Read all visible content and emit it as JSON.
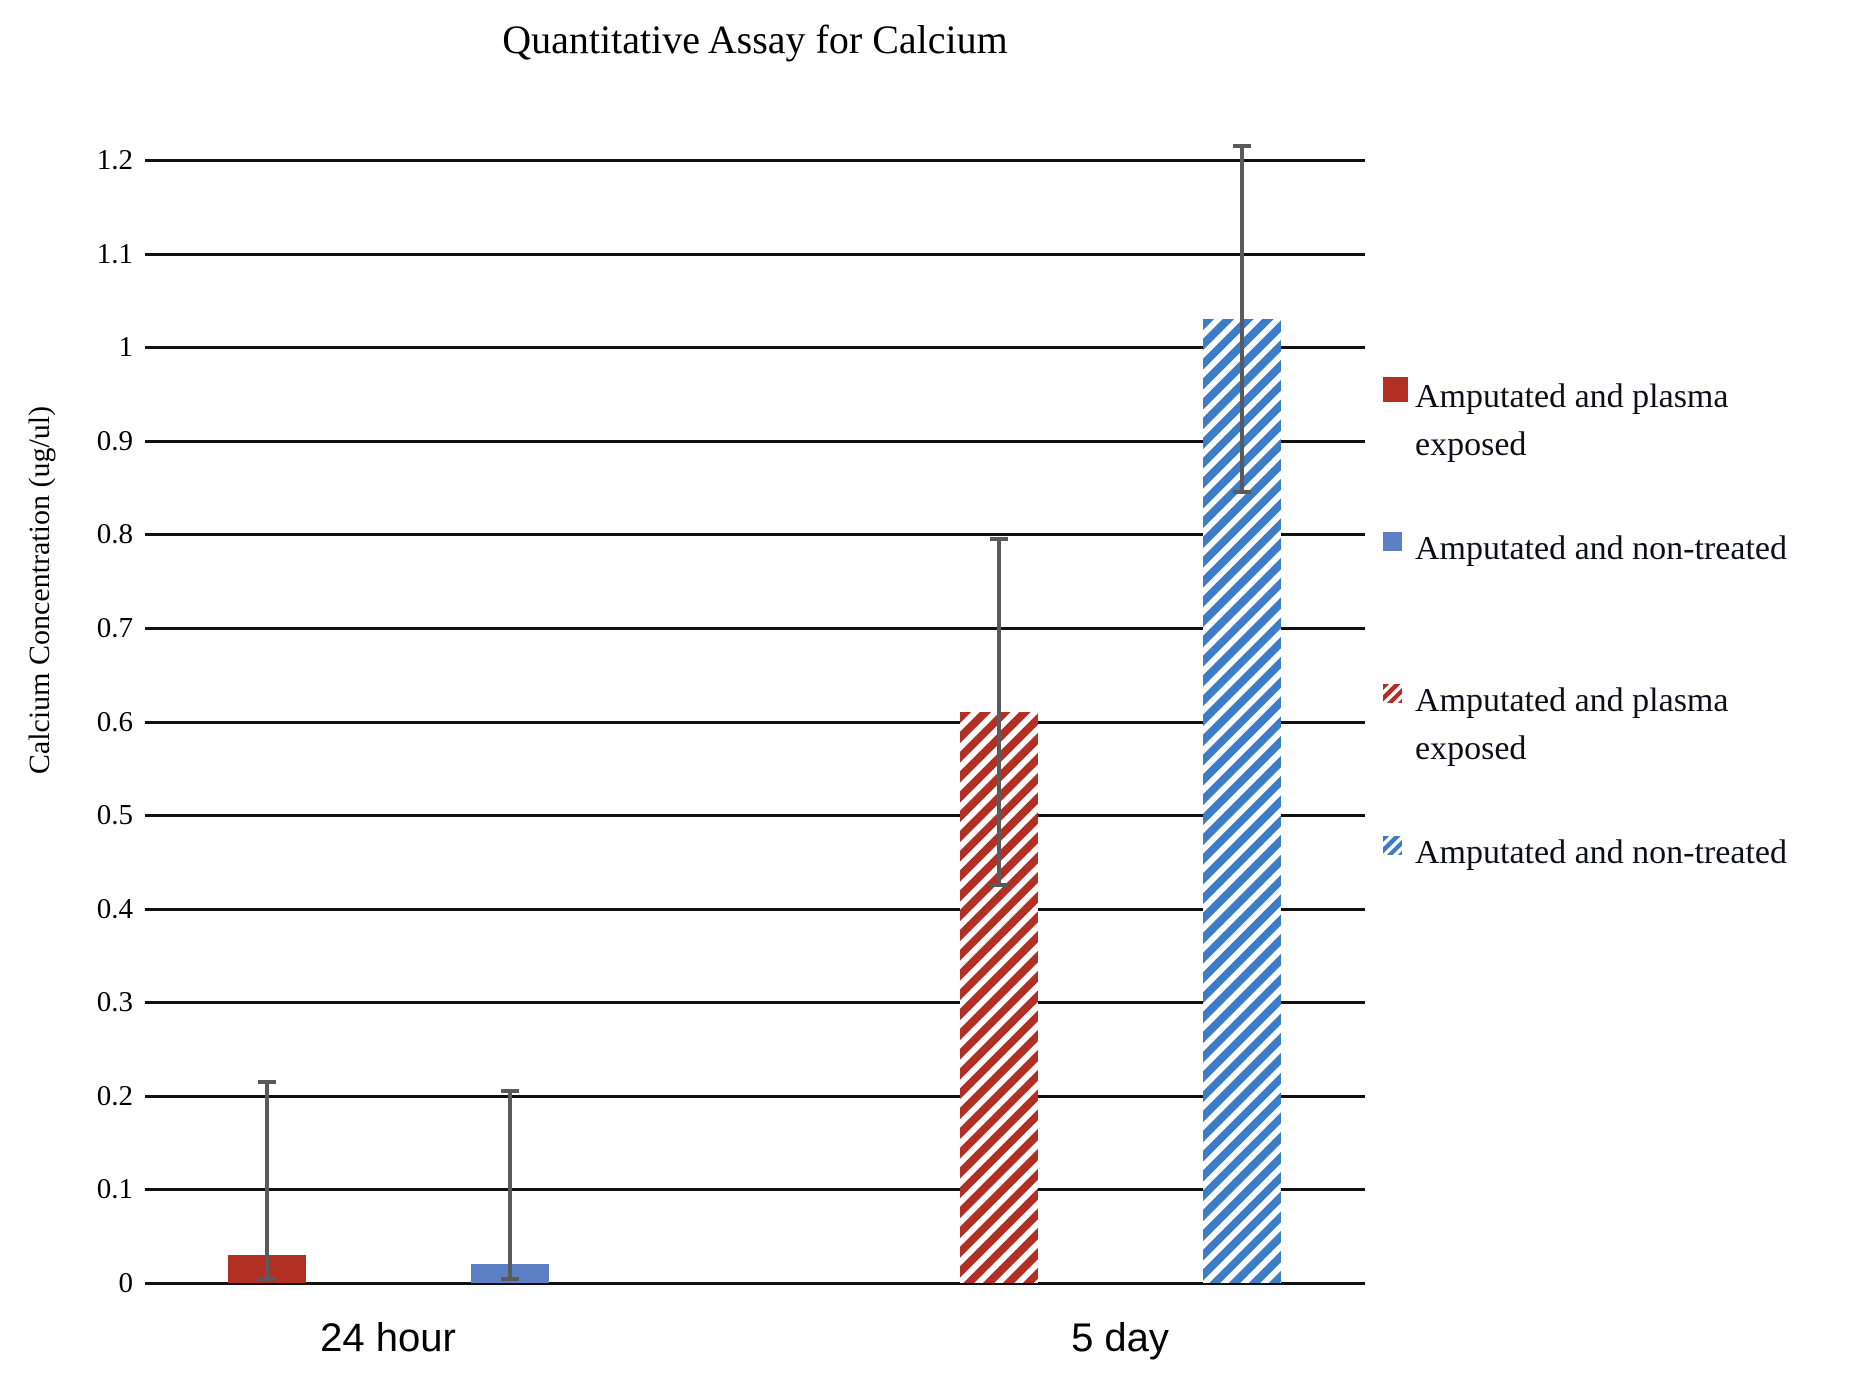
{
  "title": "Quantitative Assay for Calcium",
  "y_axis": {
    "label": "Calcium Concentration (ug/ul)",
    "ticks": [
      "0",
      "0.1",
      "0.2",
      "0.3",
      "0.4",
      "0.5",
      "0.6",
      "0.7",
      "0.8",
      "0.9",
      "1",
      "1.1",
      "1.2"
    ]
  },
  "x_axis": {
    "categories": [
      "24 hour",
      "5 day"
    ]
  },
  "legend": [
    {
      "label": "Amputated and plasma\nexposed",
      "color_key": "red",
      "pattern": "solid"
    },
    {
      "label": "Amputated and non-treated",
      "color_key": "blue_solid",
      "pattern": "solid"
    },
    {
      "label": "Amputated and plasma\nexposed",
      "color_key": "red",
      "pattern": "hatched"
    },
    {
      "label": "Amputated and non-treated",
      "color_key": "blue_hatch",
      "pattern": "hatched"
    }
  ],
  "colors": {
    "red": "#b23023",
    "blue_solid": "#5c7fc5",
    "blue_hatch": "#3d7cc6",
    "error_bar": "#5a5a5c",
    "grid_line": "#111111",
    "text": "#000000"
  },
  "chart_data": {
    "type": "bar",
    "title": "Quantitative Assay for Calcium",
    "xlabel": "",
    "ylabel": "Calcium Concentration (ug/ul)",
    "categories": [
      "24 hour",
      "5 day"
    ],
    "ylim": [
      0,
      1.2
    ],
    "ytick_step": 0.1,
    "grid": true,
    "legend_position": "right",
    "series": [
      {
        "name": "Amputated and plasma exposed",
        "pattern": "solid",
        "color": "#b23023",
        "values": [
          0.03,
          null
        ],
        "error": [
          0.185,
          null
        ]
      },
      {
        "name": "Amputated and non-treated",
        "pattern": "solid",
        "color": "#5c7fc5",
        "values": [
          0.02,
          null
        ],
        "error": [
          0.185,
          null
        ]
      },
      {
        "name": "Amputated and plasma exposed",
        "pattern": "hatched",
        "color": "#b23023",
        "values": [
          null,
          0.61
        ],
        "error": [
          null,
          0.185
        ]
      },
      {
        "name": "Amputated and non-treated",
        "pattern": "hatched",
        "color": "#3d7cc6",
        "values": [
          null,
          1.03
        ],
        "error": [
          null,
          0.185
        ]
      }
    ]
  }
}
